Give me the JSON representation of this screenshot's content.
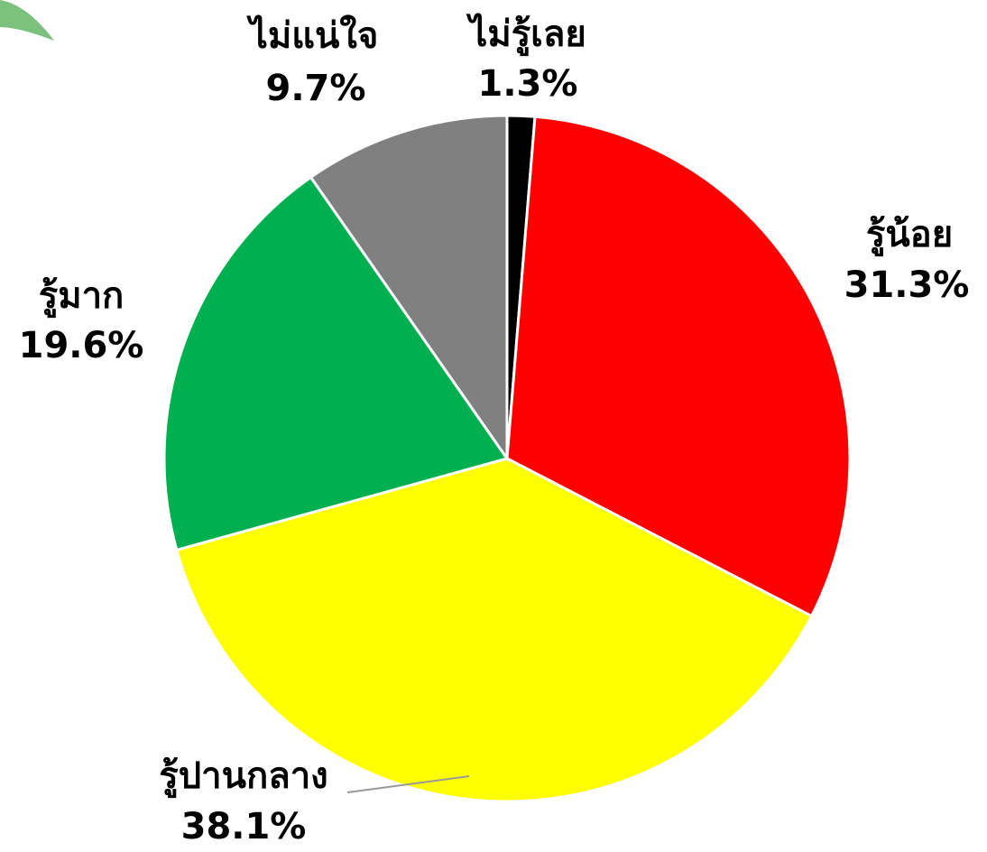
{
  "chart_data": {
    "type": "pie",
    "categories": [
      "ไม่รู้เลย",
      "รู้น้อย",
      "รู้ปานกลาง",
      "รู้มาก",
      "ไม่แน่ใจ"
    ],
    "values": [
      1.3,
      31.3,
      38.1,
      19.6,
      9.7
    ],
    "value_labels": [
      "1.3%",
      "31.3%",
      "38.1%",
      "19.6%",
      "9.7%"
    ],
    "colors": [
      "#000000",
      "#ff0000",
      "#ffff00",
      "#00b050",
      "#808080"
    ]
  }
}
